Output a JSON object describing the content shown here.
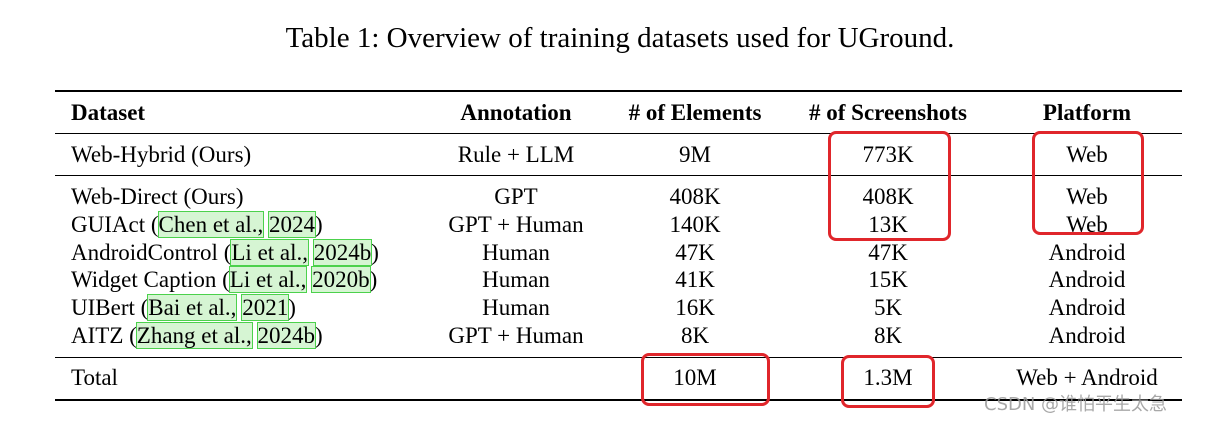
{
  "caption": "Table 1: Overview of training datasets used for UGround.",
  "headers": {
    "dataset": "Dataset",
    "annotation": "Annotation",
    "elements": "# of Elements",
    "screenshots": "# of Screenshots",
    "platform": "Platform"
  },
  "rows": [
    {
      "dataset": "Web-Hybrid (Ours)",
      "annotation": "Rule + LLM",
      "elements": "9M",
      "screenshots": "773K",
      "platform": "Web"
    },
    {
      "dataset": "Web-Direct (Ours)",
      "annotation": "GPT",
      "elements": "408K",
      "screenshots": "408K",
      "platform": "Web"
    },
    {
      "dataset_name": "GUIAct",
      "cite_author": "Chen et al.,",
      "cite_year": "2024",
      "annotation": "GPT + Human",
      "elements": "140K",
      "screenshots": "13K",
      "platform": "Web"
    },
    {
      "dataset_name": "AndroidControl",
      "cite_author": "Li et al.,",
      "cite_year": "2024b",
      "annotation": "Human",
      "elements": "47K",
      "screenshots": "47K",
      "platform": "Android"
    },
    {
      "dataset_name": "Widget Caption",
      "cite_author": "Li et al.,",
      "cite_year": "2020b",
      "annotation": "Human",
      "elements": "41K",
      "screenshots": "15K",
      "platform": "Android"
    },
    {
      "dataset_name": "UIBert",
      "cite_author": "Bai et al.,",
      "cite_year": "2021",
      "annotation": "Human",
      "elements": "16K",
      "screenshots": "5K",
      "platform": "Android"
    },
    {
      "dataset_name": "AITZ",
      "cite_author": "Zhang et al.,",
      "cite_year": "2024b",
      "annotation": "GPT + Human",
      "elements": "8K",
      "screenshots": "8K",
      "platform": "Android"
    }
  ],
  "total": {
    "label": "Total",
    "elements": "10M",
    "screenshots": "1.3M",
    "platform": "Web + Android"
  },
  "highlight_color": "#e0262b",
  "citation_highlight_color": "#4cd14c",
  "watermark": "CSDN @谁怕平生太急"
}
